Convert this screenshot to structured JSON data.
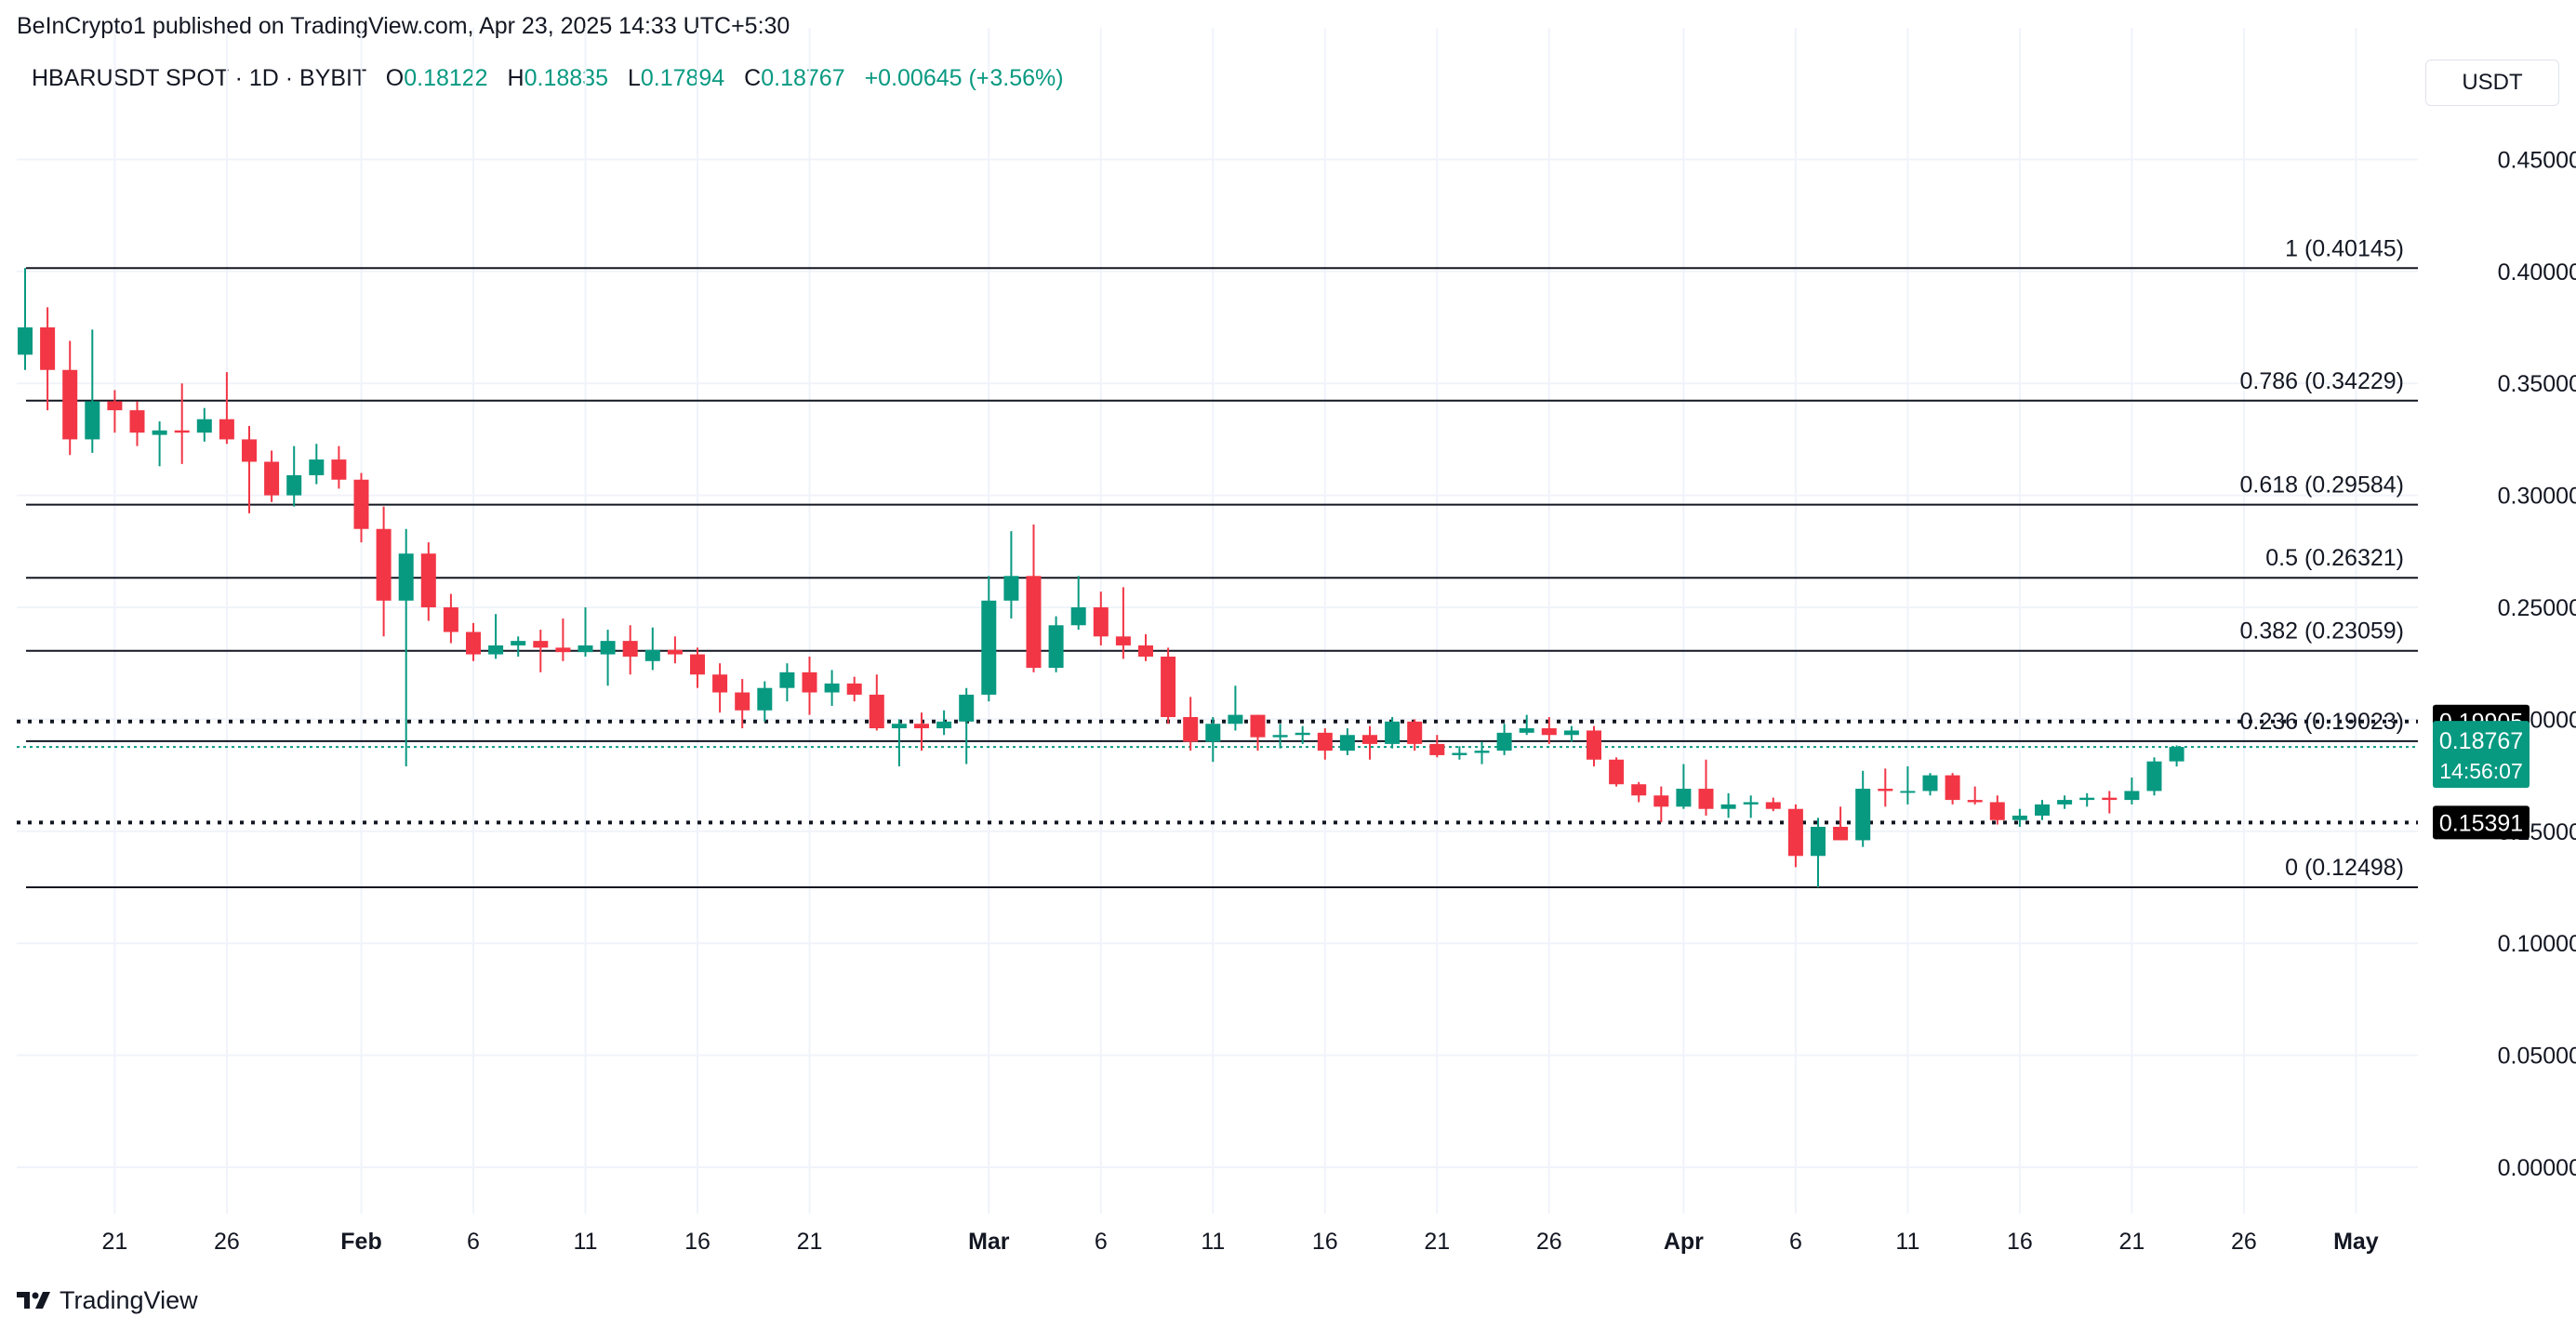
{
  "header": {
    "publisher": "BeInCrypto1 published on TradingView.com, Apr 23, 2025 14:33 UTC+5:30",
    "symbol": "HBARUSDT SPOT · 1D · BYBIT",
    "open_label": "O",
    "open": "0.18122",
    "high_label": "H",
    "high": "0.18835",
    "low_label": "L",
    "low": "0.17894",
    "close_label": "C",
    "close": "0.18767",
    "change": "+0.00645 (+3.56%)",
    "currency": "USDT"
  },
  "brand": {
    "logo": "tradingview-logo",
    "text": "TradingView"
  },
  "colors": {
    "up": "#089981",
    "down": "#f23645",
    "grid": "#f0f3fa",
    "text": "#131722"
  },
  "chart_data": {
    "type": "candlestick",
    "y_axis": {
      "min": 0.0,
      "max": 0.45,
      "ticks": [
        "0.00000",
        "0.05000",
        "0.10000",
        "0.15000",
        "0.20000",
        "0.25000",
        "0.30000",
        "0.35000",
        "0.40000",
        "0.45000"
      ]
    },
    "x_ticks": [
      {
        "label": "21",
        "date": "2025-01-21"
      },
      {
        "label": "26",
        "date": "2025-01-26"
      },
      {
        "label": "Feb",
        "date": "2025-02-01",
        "bold": true
      },
      {
        "label": "6",
        "date": "2025-02-06"
      },
      {
        "label": "11",
        "date": "2025-02-11"
      },
      {
        "label": "16",
        "date": "2025-02-16"
      },
      {
        "label": "21",
        "date": "2025-02-21"
      },
      {
        "label": "Mar",
        "date": "2025-03-01",
        "bold": true
      },
      {
        "label": "6",
        "date": "2025-03-06"
      },
      {
        "label": "11",
        "date": "2025-03-11"
      },
      {
        "label": "16",
        "date": "2025-03-16"
      },
      {
        "label": "21",
        "date": "2025-03-21"
      },
      {
        "label": "26",
        "date": "2025-03-26"
      },
      {
        "label": "Apr",
        "date": "2025-04-01",
        "bold": true
      },
      {
        "label": "6",
        "date": "2025-04-06"
      },
      {
        "label": "11",
        "date": "2025-04-11"
      },
      {
        "label": "16",
        "date": "2025-04-16"
      },
      {
        "label": "21",
        "date": "2025-04-21"
      },
      {
        "label": "26",
        "date": "2025-04-26"
      },
      {
        "label": "May",
        "date": "2025-05-01",
        "bold": true
      }
    ],
    "fib_levels": [
      {
        "label": "1 (0.40145)",
        "value": 0.40145
      },
      {
        "label": "0.786 (0.34229)",
        "value": 0.34229
      },
      {
        "label": "0.618 (0.29584)",
        "value": 0.29584
      },
      {
        "label": "0.5 (0.26321)",
        "value": 0.26321
      },
      {
        "label": "0.382 (0.23059)",
        "value": 0.23059
      },
      {
        "label": "0.236 (0.19023)",
        "value": 0.19023
      },
      {
        "label": "0 (0.12498)",
        "value": 0.12498
      }
    ],
    "horizontal_levels": [
      {
        "label": "0.19905",
        "value": 0.19905
      },
      {
        "label": "0.15391",
        "value": 0.15391
      }
    ],
    "price_label": {
      "value": 0.18767,
      "text": "0.18767",
      "countdown": "14:56:07"
    },
    "candles": [
      {
        "date": "2025-01-17",
        "o": 0.3628,
        "h": 0.4015,
        "l": 0.356,
        "c": 0.375
      },
      {
        "date": "2025-01-18",
        "o": 0.375,
        "h": 0.384,
        "l": 0.338,
        "c": 0.356
      },
      {
        "date": "2025-01-19",
        "o": 0.356,
        "h": 0.369,
        "l": 0.318,
        "c": 0.325
      },
      {
        "date": "2025-01-20",
        "o": 0.325,
        "h": 0.374,
        "l": 0.319,
        "c": 0.342
      },
      {
        "date": "2025-01-21",
        "o": 0.342,
        "h": 0.347,
        "l": 0.328,
        "c": 0.338
      },
      {
        "date": "2025-01-22",
        "o": 0.338,
        "h": 0.342,
        "l": 0.322,
        "c": 0.328
      },
      {
        "date": "2025-01-23",
        "o": 0.327,
        "h": 0.333,
        "l": 0.313,
        "c": 0.329
      },
      {
        "date": "2025-01-24",
        "o": 0.329,
        "h": 0.35,
        "l": 0.314,
        "c": 0.328
      },
      {
        "date": "2025-01-25",
        "o": 0.328,
        "h": 0.339,
        "l": 0.324,
        "c": 0.334
      },
      {
        "date": "2025-01-26",
        "o": 0.334,
        "h": 0.355,
        "l": 0.323,
        "c": 0.325
      },
      {
        "date": "2025-01-27",
        "o": 0.325,
        "h": 0.331,
        "l": 0.292,
        "c": 0.315
      },
      {
        "date": "2025-01-28",
        "o": 0.315,
        "h": 0.32,
        "l": 0.297,
        "c": 0.3
      },
      {
        "date": "2025-01-29",
        "o": 0.3,
        "h": 0.322,
        "l": 0.295,
        "c": 0.309
      },
      {
        "date": "2025-01-30",
        "o": 0.309,
        "h": 0.323,
        "l": 0.305,
        "c": 0.316
      },
      {
        "date": "2025-01-31",
        "o": 0.316,
        "h": 0.322,
        "l": 0.303,
        "c": 0.307
      },
      {
        "date": "2025-02-01",
        "o": 0.307,
        "h": 0.31,
        "l": 0.279,
        "c": 0.285
      },
      {
        "date": "2025-02-02",
        "o": 0.285,
        "h": 0.295,
        "l": 0.237,
        "c": 0.253
      },
      {
        "date": "2025-02-03",
        "o": 0.253,
        "h": 0.285,
        "l": 0.179,
        "c": 0.274
      },
      {
        "date": "2025-02-04",
        "o": 0.274,
        "h": 0.279,
        "l": 0.244,
        "c": 0.25
      },
      {
        "date": "2025-02-05",
        "o": 0.25,
        "h": 0.256,
        "l": 0.234,
        "c": 0.239
      },
      {
        "date": "2025-02-06",
        "o": 0.239,
        "h": 0.243,
        "l": 0.226,
        "c": 0.229
      },
      {
        "date": "2025-02-07",
        "o": 0.229,
        "h": 0.247,
        "l": 0.227,
        "c": 0.233
      },
      {
        "date": "2025-02-08",
        "o": 0.233,
        "h": 0.237,
        "l": 0.228,
        "c": 0.235
      },
      {
        "date": "2025-02-09",
        "o": 0.235,
        "h": 0.24,
        "l": 0.221,
        "c": 0.232
      },
      {
        "date": "2025-02-10",
        "o": 0.232,
        "h": 0.245,
        "l": 0.226,
        "c": 0.23
      },
      {
        "date": "2025-02-11",
        "o": 0.23,
        "h": 0.25,
        "l": 0.228,
        "c": 0.233
      },
      {
        "date": "2025-02-12",
        "o": 0.229,
        "h": 0.24,
        "l": 0.215,
        "c": 0.235
      },
      {
        "date": "2025-02-13",
        "o": 0.235,
        "h": 0.242,
        "l": 0.22,
        "c": 0.228
      },
      {
        "date": "2025-02-14",
        "o": 0.226,
        "h": 0.241,
        "l": 0.222,
        "c": 0.231
      },
      {
        "date": "2025-02-15",
        "o": 0.231,
        "h": 0.237,
        "l": 0.225,
        "c": 0.229
      },
      {
        "date": "2025-02-16",
        "o": 0.229,
        "h": 0.232,
        "l": 0.214,
        "c": 0.22
      },
      {
        "date": "2025-02-17",
        "o": 0.22,
        "h": 0.225,
        "l": 0.203,
        "c": 0.212
      },
      {
        "date": "2025-02-18",
        "o": 0.212,
        "h": 0.218,
        "l": 0.196,
        "c": 0.204
      },
      {
        "date": "2025-02-19",
        "o": 0.204,
        "h": 0.217,
        "l": 0.199,
        "c": 0.214
      },
      {
        "date": "2025-02-20",
        "o": 0.214,
        "h": 0.225,
        "l": 0.208,
        "c": 0.221
      },
      {
        "date": "2025-02-21",
        "o": 0.221,
        "h": 0.228,
        "l": 0.202,
        "c": 0.212
      },
      {
        "date": "2025-02-22",
        "o": 0.212,
        "h": 0.222,
        "l": 0.206,
        "c": 0.216
      },
      {
        "date": "2025-02-23",
        "o": 0.216,
        "h": 0.219,
        "l": 0.208,
        "c": 0.211
      },
      {
        "date": "2025-02-24",
        "o": 0.211,
        "h": 0.22,
        "l": 0.195,
        "c": 0.196
      },
      {
        "date": "2025-02-25",
        "o": 0.196,
        "h": 0.2,
        "l": 0.179,
        "c": 0.198
      },
      {
        "date": "2025-02-26",
        "o": 0.198,
        "h": 0.203,
        "l": 0.186,
        "c": 0.196
      },
      {
        "date": "2025-02-27",
        "o": 0.196,
        "h": 0.204,
        "l": 0.193,
        "c": 0.199
      },
      {
        "date": "2025-02-28",
        "o": 0.199,
        "h": 0.214,
        "l": 0.18,
        "c": 0.211
      },
      {
        "date": "2025-03-01",
        "o": 0.211,
        "h": 0.264,
        "l": 0.208,
        "c": 0.253
      },
      {
        "date": "2025-03-02",
        "o": 0.253,
        "h": 0.284,
        "l": 0.245,
        "c": 0.264
      },
      {
        "date": "2025-03-03",
        "o": 0.264,
        "h": 0.287,
        "l": 0.221,
        "c": 0.223
      },
      {
        "date": "2025-03-04",
        "o": 0.223,
        "h": 0.246,
        "l": 0.221,
        "c": 0.242
      },
      {
        "date": "2025-03-05",
        "o": 0.242,
        "h": 0.264,
        "l": 0.24,
        "c": 0.25
      },
      {
        "date": "2025-03-06",
        "o": 0.25,
        "h": 0.257,
        "l": 0.233,
        "c": 0.237
      },
      {
        "date": "2025-03-07",
        "o": 0.237,
        "h": 0.259,
        "l": 0.227,
        "c": 0.233
      },
      {
        "date": "2025-03-08",
        "o": 0.233,
        "h": 0.238,
        "l": 0.226,
        "c": 0.228
      },
      {
        "date": "2025-03-09",
        "o": 0.228,
        "h": 0.232,
        "l": 0.198,
        "c": 0.201
      },
      {
        "date": "2025-03-10",
        "o": 0.201,
        "h": 0.21,
        "l": 0.186,
        "c": 0.19
      },
      {
        "date": "2025-03-11",
        "o": 0.19,
        "h": 0.201,
        "l": 0.181,
        "c": 0.198
      },
      {
        "date": "2025-03-12",
        "o": 0.198,
        "h": 0.215,
        "l": 0.195,
        "c": 0.202
      },
      {
        "date": "2025-03-13",
        "o": 0.202,
        "h": 0.202,
        "l": 0.186,
        "c": 0.192
      },
      {
        "date": "2025-03-14",
        "o": 0.192,
        "h": 0.198,
        "l": 0.187,
        "c": 0.193
      },
      {
        "date": "2025-03-15",
        "o": 0.193,
        "h": 0.197,
        "l": 0.189,
        "c": 0.194
      },
      {
        "date": "2025-03-16",
        "o": 0.194,
        "h": 0.196,
        "l": 0.182,
        "c": 0.186
      },
      {
        "date": "2025-03-17",
        "o": 0.186,
        "h": 0.196,
        "l": 0.184,
        "c": 0.193
      },
      {
        "date": "2025-03-18",
        "o": 0.193,
        "h": 0.197,
        "l": 0.182,
        "c": 0.189
      },
      {
        "date": "2025-03-19",
        "o": 0.189,
        "h": 0.201,
        "l": 0.187,
        "c": 0.199
      },
      {
        "date": "2025-03-20",
        "o": 0.199,
        "h": 0.2,
        "l": 0.186,
        "c": 0.189
      },
      {
        "date": "2025-03-21",
        "o": 0.189,
        "h": 0.193,
        "l": 0.183,
        "c": 0.184
      },
      {
        "date": "2025-03-22",
        "o": 0.184,
        "h": 0.188,
        "l": 0.182,
        "c": 0.185
      },
      {
        "date": "2025-03-23",
        "o": 0.185,
        "h": 0.19,
        "l": 0.18,
        "c": 0.186
      },
      {
        "date": "2025-03-24",
        "o": 0.186,
        "h": 0.198,
        "l": 0.184,
        "c": 0.194
      },
      {
        "date": "2025-03-25",
        "o": 0.194,
        "h": 0.202,
        "l": 0.193,
        "c": 0.196
      },
      {
        "date": "2025-03-26",
        "o": 0.196,
        "h": 0.201,
        "l": 0.189,
        "c": 0.193
      },
      {
        "date": "2025-03-27",
        "o": 0.193,
        "h": 0.197,
        "l": 0.19,
        "c": 0.195
      },
      {
        "date": "2025-03-28",
        "o": 0.195,
        "h": 0.197,
        "l": 0.179,
        "c": 0.182
      },
      {
        "date": "2025-03-29",
        "o": 0.182,
        "h": 0.183,
        "l": 0.17,
        "c": 0.171
      },
      {
        "date": "2025-03-30",
        "o": 0.171,
        "h": 0.172,
        "l": 0.163,
        "c": 0.166
      },
      {
        "date": "2025-03-31",
        "o": 0.166,
        "h": 0.17,
        "l": 0.154,
        "c": 0.161
      },
      {
        "date": "2025-04-01",
        "o": 0.161,
        "h": 0.18,
        "l": 0.16,
        "c": 0.169
      },
      {
        "date": "2025-04-02",
        "o": 0.169,
        "h": 0.182,
        "l": 0.157,
        "c": 0.16
      },
      {
        "date": "2025-04-03",
        "o": 0.16,
        "h": 0.167,
        "l": 0.156,
        "c": 0.162
      },
      {
        "date": "2025-04-04",
        "o": 0.162,
        "h": 0.166,
        "l": 0.156,
        "c": 0.163
      },
      {
        "date": "2025-04-05",
        "o": 0.163,
        "h": 0.165,
        "l": 0.159,
        "c": 0.16
      },
      {
        "date": "2025-04-06",
        "o": 0.16,
        "h": 0.162,
        "l": 0.134,
        "c": 0.139
      },
      {
        "date": "2025-04-07",
        "o": 0.139,
        "h": 0.156,
        "l": 0.125,
        "c": 0.152
      },
      {
        "date": "2025-04-08",
        "o": 0.152,
        "h": 0.161,
        "l": 0.146,
        "c": 0.146
      },
      {
        "date": "2025-04-09",
        "o": 0.146,
        "h": 0.177,
        "l": 0.143,
        "c": 0.169
      },
      {
        "date": "2025-04-10",
        "o": 0.169,
        "h": 0.178,
        "l": 0.161,
        "c": 0.168
      },
      {
        "date": "2025-04-11",
        "o": 0.168,
        "h": 0.179,
        "l": 0.162,
        "c": 0.168
      },
      {
        "date": "2025-04-12",
        "o": 0.168,
        "h": 0.176,
        "l": 0.166,
        "c": 0.175
      },
      {
        "date": "2025-04-13",
        "o": 0.175,
        "h": 0.176,
        "l": 0.162,
        "c": 0.164
      },
      {
        "date": "2025-04-14",
        "o": 0.164,
        "h": 0.17,
        "l": 0.162,
        "c": 0.163
      },
      {
        "date": "2025-04-15",
        "o": 0.163,
        "h": 0.166,
        "l": 0.153,
        "c": 0.155
      },
      {
        "date": "2025-04-16",
        "o": 0.155,
        "h": 0.16,
        "l": 0.152,
        "c": 0.157
      },
      {
        "date": "2025-04-17",
        "o": 0.157,
        "h": 0.164,
        "l": 0.155,
        "c": 0.162
      },
      {
        "date": "2025-04-18",
        "o": 0.162,
        "h": 0.166,
        "l": 0.16,
        "c": 0.164
      },
      {
        "date": "2025-04-19",
        "o": 0.164,
        "h": 0.167,
        "l": 0.161,
        "c": 0.165
      },
      {
        "date": "2025-04-20",
        "o": 0.165,
        "h": 0.168,
        "l": 0.158,
        "c": 0.164
      },
      {
        "date": "2025-04-21",
        "o": 0.164,
        "h": 0.174,
        "l": 0.162,
        "c": 0.168
      },
      {
        "date": "2025-04-22",
        "o": 0.168,
        "h": 0.183,
        "l": 0.166,
        "c": 0.1812
      },
      {
        "date": "2025-04-23",
        "o": 0.18122,
        "h": 0.18835,
        "l": 0.17894,
        "c": 0.18767
      }
    ]
  }
}
